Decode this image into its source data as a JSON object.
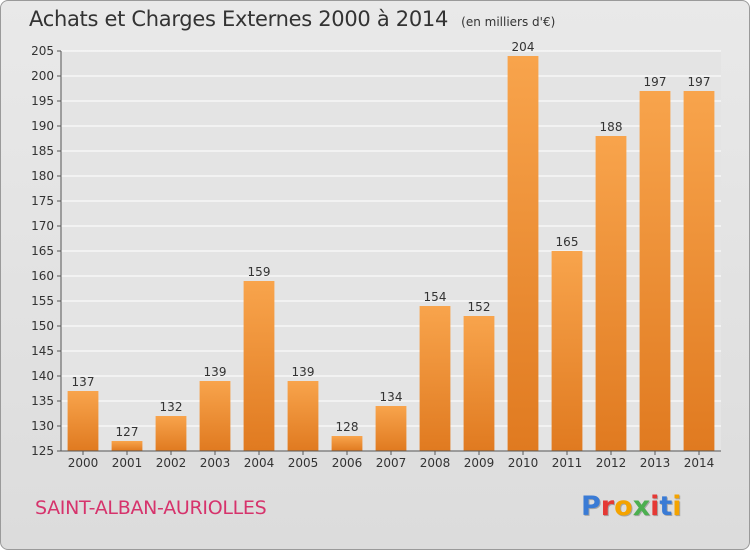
{
  "header": {
    "title": "Achats et Charges Externes 2000 à 2014",
    "subtitle": "(en milliers d'€)"
  },
  "footer": {
    "commune": "SAINT-ALBAN-AURIOLLES",
    "logo": "Proxiti"
  },
  "colors": {
    "bar_top": "#f8a44c",
    "bar_bottom": "#e07a20",
    "commune_text": "#d6336c",
    "logo_letters": [
      "#3a7bd5",
      "#e53935",
      "#f4a300",
      "#4caf50",
      "#e53935",
      "#3a7bd5",
      "#f4a300"
    ]
  },
  "chart_data": {
    "type": "bar",
    "title": "Achats et Charges Externes 2000 à 2014",
    "subtitle": "(en milliers d'€)",
    "categories": [
      "2000",
      "2001",
      "2002",
      "2003",
      "2004",
      "2005",
      "2006",
      "2007",
      "2008",
      "2009",
      "2010",
      "2011",
      "2012",
      "2013",
      "2014"
    ],
    "values": [
      137,
      127,
      132,
      139,
      159,
      139,
      128,
      134,
      154,
      152,
      204,
      165,
      188,
      197,
      197
    ],
    "ylim": [
      125,
      205
    ],
    "yticks": [
      125,
      130,
      135,
      140,
      145,
      150,
      155,
      160,
      165,
      170,
      175,
      180,
      185,
      190,
      195,
      200,
      205
    ],
    "grid": true,
    "data_labels": true
  }
}
